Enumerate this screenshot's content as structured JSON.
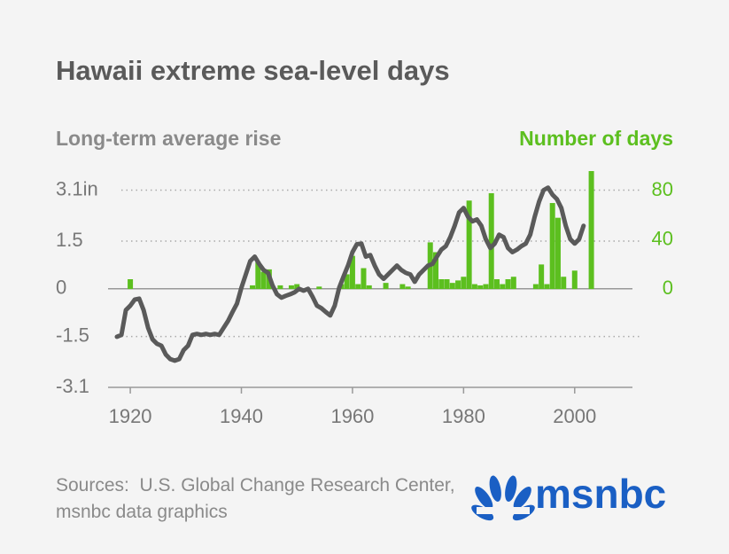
{
  "chart_data": {
    "type": "combo",
    "title": "Hawaii extreme sea-level days",
    "source": "Sources:  U.S. Global Change Research Center, msnbc data graphics",
    "logo": "msnbc",
    "xlim": [
      1916,
      2010.4
    ],
    "xticks": [
      1920,
      1940,
      1960,
      1980,
      2000
    ],
    "ylim": [
      -3.1,
      3.7
    ],
    "yticks": [
      {
        "value": 3.1,
        "label": "3.1in"
      },
      1.5,
      0,
      -1.5,
      -3.1
    ],
    "y2lim": [
      -80,
      96
    ],
    "y2ticks": [
      80,
      40,
      0
    ],
    "grid": true,
    "series": [
      {
        "name": "Long-term average rise",
        "type": "line",
        "color": "#5a5a5a",
        "x": [
          1917.6,
          1918.4,
          1919.2,
          1920,
          1920.8,
          1921.6,
          1922.4,
          1923.2,
          1924,
          1924.8,
          1925.6,
          1926.4,
          1927.2,
          1928,
          1928.8,
          1929.6,
          1930.4,
          1931.2,
          1932,
          1932.8,
          1933.6,
          1934.4,
          1935.2,
          1936,
          1936.8,
          1937.6,
          1938.4,
          1939.2,
          1940,
          1940.8,
          1941.6,
          1942.4,
          1943.2,
          1944,
          1944.8,
          1945.6,
          1946.4,
          1947.2,
          1948,
          1948.8,
          1949.6,
          1950.4,
          1951.2,
          1952,
          1952.8,
          1953.6,
          1954.4,
          1955.2,
          1956,
          1956.8,
          1957.6,
          1958.4,
          1959.2,
          1960,
          1960.8,
          1961.6,
          1962.4,
          1963.2,
          1964,
          1964.8,
          1965.6,
          1966.4,
          1967.2,
          1968,
          1968.8,
          1969.6,
          1970.4,
          1971.2,
          1972,
          1972.8,
          1973.6,
          1974.4,
          1975.2,
          1976,
          1976.8,
          1977.6,
          1978.4,
          1979.2,
          1980,
          1980.8,
          1981.6,
          1982.4,
          1983.2,
          1984,
          1984.8,
          1985.6,
          1986.4,
          1987.2,
          1988,
          1988.8,
          1989.6,
          1990.4,
          1991.2,
          1992,
          1992.8,
          1993.6,
          1994.4,
          1995.2,
          1996,
          1996.8,
          1997.6,
          1998.4,
          1999.2,
          2000,
          2000.8,
          2001.6
        ],
        "values": [
          -1.51,
          -1.45,
          -0.67,
          -0.53,
          -0.34,
          -0.31,
          -0.67,
          -1.23,
          -1.59,
          -1.73,
          -1.79,
          -2.07,
          -2.21,
          -2.26,
          -2.21,
          -1.93,
          -1.79,
          -1.45,
          -1.42,
          -1.45,
          -1.42,
          -1.45,
          -1.42,
          -1.45,
          -1.23,
          -1.01,
          -0.73,
          -0.47,
          0.03,
          0.45,
          0.87,
          1.01,
          0.78,
          0.59,
          0.5,
          0.11,
          -0.17,
          -0.28,
          -0.22,
          -0.17,
          -0.11,
          0,
          -0.06,
          0,
          -0.25,
          -0.53,
          -0.61,
          -0.73,
          -0.84,
          -0.53,
          0.03,
          0.39,
          0.73,
          1.15,
          1.4,
          1.42,
          1.01,
          1.06,
          0.73,
          0.45,
          0.31,
          0.45,
          0.59,
          0.73,
          0.59,
          0.5,
          0.45,
          0.22,
          0.45,
          0.59,
          0.73,
          0.78,
          1.01,
          1.23,
          1.34,
          1.62,
          1.98,
          2.4,
          2.54,
          2.26,
          2.12,
          2.18,
          1.98,
          1.56,
          1.28,
          1.42,
          1.7,
          1.62,
          1.28,
          1.15,
          1.23,
          1.34,
          1.42,
          1.7,
          2.26,
          2.74,
          3.1,
          3.18,
          2.96,
          2.82,
          2.54,
          1.98,
          1.56,
          1.42,
          1.56,
          1.98
        ]
      },
      {
        "name": "Number of days",
        "type": "bar",
        "axis": "y2",
        "color": "#5cbf1f",
        "x": [
          1920,
          1942,
          1943,
          1944,
          1945,
          1947,
          1949,
          1950,
          1954,
          1958,
          1959,
          1960,
          1961,
          1962,
          1963,
          1966,
          1969,
          1970,
          1974,
          1975,
          1976,
          1977,
          1978,
          1979,
          1980,
          1981,
          1982,
          1983,
          1984,
          1985,
          1986,
          1987,
          1988,
          1989,
          1993,
          1994,
          1995,
          1996,
          1997,
          1998,
          2000,
          2003
        ],
        "values": [
          8,
          3,
          22,
          14,
          16,
          3,
          3,
          4,
          2,
          4,
          12,
          27,
          4,
          17,
          3,
          5,
          4,
          2,
          38,
          30,
          8,
          8,
          5,
          7,
          10,
          72,
          4,
          3,
          4,
          78,
          8,
          4,
          8,
          10,
          4,
          20,
          4,
          70,
          58,
          10,
          15,
          96
        ]
      }
    ]
  }
}
